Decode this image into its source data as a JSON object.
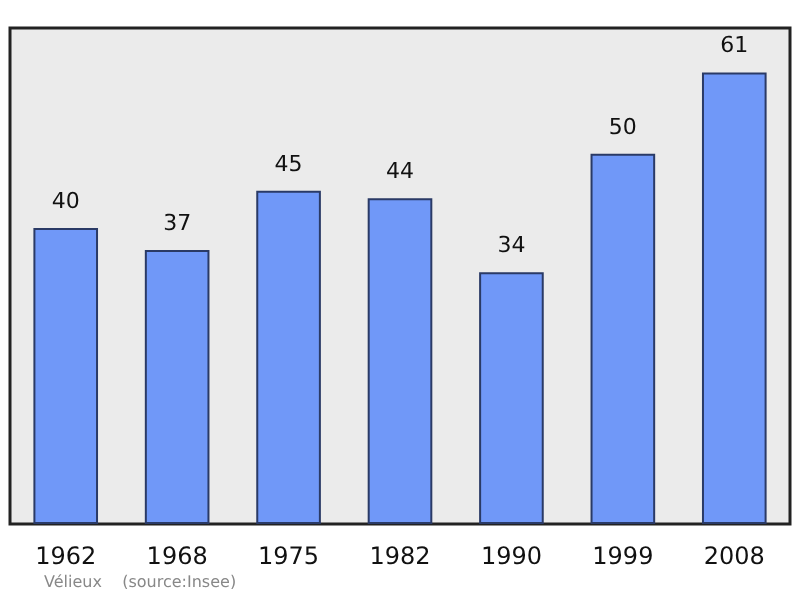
{
  "chart_data": {
    "type": "bar",
    "categories": [
      "1962",
      "1968",
      "1975",
      "1982",
      "1990",
      "1999",
      "2008"
    ],
    "values": [
      40,
      37,
      45,
      44,
      34,
      50,
      61
    ],
    "color": "#7098f8",
    "ylim": [
      0,
      67
    ],
    "tick_labels": "x",
    "grid": false,
    "data_labels": true,
    "annotations": [
      "Vélieux    (source:Insee)"
    ]
  }
}
